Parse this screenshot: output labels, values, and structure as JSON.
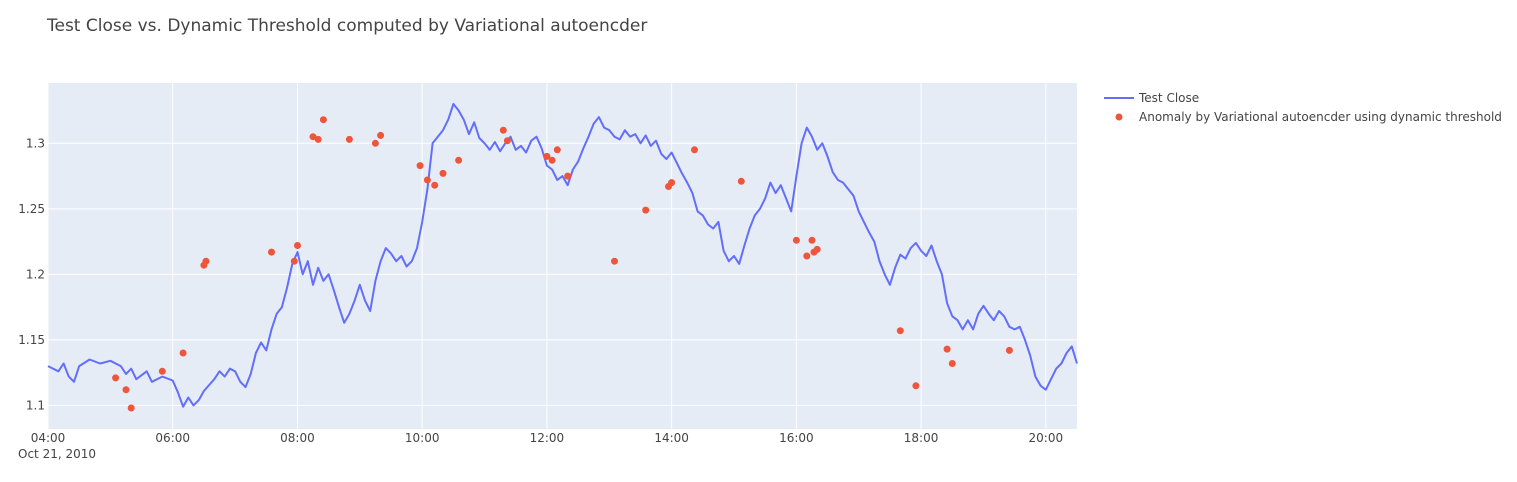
{
  "chart_data": {
    "type": "line",
    "title": "Test Close vs. Dynamic Threshold computed by Variational autoencder",
    "xlabel": "",
    "ylabel": "",
    "x_axis": {
      "start": "04:00",
      "end": "20:30",
      "ticks": [
        "04:00",
        "06:00",
        "08:00",
        "10:00",
        "12:00",
        "14:00",
        "16:00",
        "18:00",
        "20:00"
      ],
      "date_label": "Oct 21, 2010"
    },
    "y_axis": {
      "range": [
        1.082,
        1.346
      ],
      "ticks": [
        1.1,
        1.15,
        1.2,
        1.25,
        1.3
      ],
      "tick_labels": [
        "1.1",
        "1.15",
        "1.2",
        "1.25",
        "1.3"
      ]
    },
    "grid": true,
    "legend_position": "top-right",
    "series": [
      {
        "name": "Test Close",
        "type": "line",
        "color": "#636efa",
        "points": [
          [
            "04:00",
            1.13
          ],
          [
            "04:10",
            1.126
          ],
          [
            "04:15",
            1.132
          ],
          [
            "04:20",
            1.122
          ],
          [
            "04:25",
            1.118
          ],
          [
            "04:30",
            1.13
          ],
          [
            "04:40",
            1.135
          ],
          [
            "04:50",
            1.132
          ],
          [
            "05:00",
            1.134
          ],
          [
            "05:10",
            1.13
          ],
          [
            "05:15",
            1.124
          ],
          [
            "05:20",
            1.128
          ],
          [
            "05:25",
            1.12
          ],
          [
            "05:35",
            1.126
          ],
          [
            "05:40",
            1.118
          ],
          [
            "05:50",
            1.122
          ],
          [
            "06:00",
            1.119
          ],
          [
            "06:05",
            1.11
          ],
          [
            "06:10",
            1.099
          ],
          [
            "06:15",
            1.106
          ],
          [
            "06:20",
            1.1
          ],
          [
            "06:25",
            1.104
          ],
          [
            "06:30",
            1.111
          ],
          [
            "06:40",
            1.12
          ],
          [
            "06:45",
            1.126
          ],
          [
            "06:50",
            1.122
          ],
          [
            "06:55",
            1.128
          ],
          [
            "07:00",
            1.126
          ],
          [
            "07:05",
            1.118
          ],
          [
            "07:10",
            1.114
          ],
          [
            "07:15",
            1.124
          ],
          [
            "07:20",
            1.14
          ],
          [
            "07:25",
            1.148
          ],
          [
            "07:30",
            1.142
          ],
          [
            "07:35",
            1.158
          ],
          [
            "07:40",
            1.17
          ],
          [
            "07:45",
            1.175
          ],
          [
            "07:50",
            1.19
          ],
          [
            "07:55",
            1.208
          ],
          [
            "08:00",
            1.217
          ],
          [
            "08:05",
            1.2
          ],
          [
            "08:10",
            1.21
          ],
          [
            "08:15",
            1.192
          ],
          [
            "08:20",
            1.205
          ],
          [
            "08:25",
            1.195
          ],
          [
            "08:30",
            1.2
          ],
          [
            "08:35",
            1.188
          ],
          [
            "08:40",
            1.175
          ],
          [
            "08:45",
            1.163
          ],
          [
            "08:50",
            1.17
          ],
          [
            "08:55",
            1.18
          ],
          [
            "09:00",
            1.192
          ],
          [
            "09:05",
            1.18
          ],
          [
            "09:10",
            1.172
          ],
          [
            "09:15",
            1.195
          ],
          [
            "09:20",
            1.21
          ],
          [
            "09:25",
            1.22
          ],
          [
            "09:30",
            1.216
          ],
          [
            "09:35",
            1.21
          ],
          [
            "09:40",
            1.214
          ],
          [
            "09:45",
            1.206
          ],
          [
            "09:50",
            1.21
          ],
          [
            "09:55",
            1.22
          ],
          [
            "10:00",
            1.24
          ],
          [
            "10:05",
            1.265
          ],
          [
            "10:10",
            1.3
          ],
          [
            "10:15",
            1.305
          ],
          [
            "10:20",
            1.31
          ],
          [
            "10:25",
            1.318
          ],
          [
            "10:30",
            1.33
          ],
          [
            "10:35",
            1.325
          ],
          [
            "10:40",
            1.318
          ],
          [
            "10:45",
            1.307
          ],
          [
            "10:50",
            1.316
          ],
          [
            "10:55",
            1.304
          ],
          [
            "11:00",
            1.3
          ],
          [
            "11:05",
            1.295
          ],
          [
            "11:10",
            1.301
          ],
          [
            "11:15",
            1.294
          ],
          [
            "11:20",
            1.3
          ],
          [
            "11:25",
            1.305
          ],
          [
            "11:30",
            1.295
          ],
          [
            "11:35",
            1.298
          ],
          [
            "11:40",
            1.293
          ],
          [
            "11:45",
            1.302
          ],
          [
            "11:50",
            1.305
          ],
          [
            "11:55",
            1.296
          ],
          [
            "12:00",
            1.283
          ],
          [
            "12:05",
            1.28
          ],
          [
            "12:10",
            1.272
          ],
          [
            "12:15",
            1.275
          ],
          [
            "12:20",
            1.268
          ],
          [
            "12:25",
            1.28
          ],
          [
            "12:30",
            1.286
          ],
          [
            "12:35",
            1.296
          ],
          [
            "12:40",
            1.305
          ],
          [
            "12:45",
            1.315
          ],
          [
            "12:50",
            1.32
          ],
          [
            "12:55",
            1.312
          ],
          [
            "13:00",
            1.31
          ],
          [
            "13:05",
            1.305
          ],
          [
            "13:10",
            1.303
          ],
          [
            "13:15",
            1.31
          ],
          [
            "13:20",
            1.305
          ],
          [
            "13:25",
            1.307
          ],
          [
            "13:30",
            1.3
          ],
          [
            "13:35",
            1.306
          ],
          [
            "13:40",
            1.298
          ],
          [
            "13:45",
            1.302
          ],
          [
            "13:50",
            1.292
          ],
          [
            "13:55",
            1.288
          ],
          [
            "14:00",
            1.293
          ],
          [
            "14:05",
            1.285
          ],
          [
            "14:10",
            1.277
          ],
          [
            "14:15",
            1.27
          ],
          [
            "14:20",
            1.262
          ],
          [
            "14:25",
            1.248
          ],
          [
            "14:30",
            1.245
          ],
          [
            "14:35",
            1.238
          ],
          [
            "14:40",
            1.235
          ],
          [
            "14:45",
            1.24
          ],
          [
            "14:50",
            1.218
          ],
          [
            "14:55",
            1.21
          ],
          [
            "15:00",
            1.214
          ],
          [
            "15:05",
            1.208
          ],
          [
            "15:10",
            1.222
          ],
          [
            "15:15",
            1.235
          ],
          [
            "15:20",
            1.245
          ],
          [
            "15:25",
            1.25
          ],
          [
            "15:30",
            1.258
          ],
          [
            "15:35",
            1.27
          ],
          [
            "15:40",
            1.262
          ],
          [
            "15:45",
            1.268
          ],
          [
            "15:50",
            1.258
          ],
          [
            "15:55",
            1.248
          ],
          [
            "16:00",
            1.275
          ],
          [
            "16:05",
            1.3
          ],
          [
            "16:10",
            1.312
          ],
          [
            "16:15",
            1.305
          ],
          [
            "16:20",
            1.295
          ],
          [
            "16:25",
            1.3
          ],
          [
            "16:30",
            1.29
          ],
          [
            "16:35",
            1.278
          ],
          [
            "16:40",
            1.272
          ],
          [
            "16:45",
            1.27
          ],
          [
            "16:50",
            1.265
          ],
          [
            "16:55",
            1.26
          ],
          [
            "17:00",
            1.248
          ],
          [
            "17:05",
            1.24
          ],
          [
            "17:10",
            1.232
          ],
          [
            "17:15",
            1.225
          ],
          [
            "17:20",
            1.21
          ],
          [
            "17:25",
            1.2
          ],
          [
            "17:30",
            1.192
          ],
          [
            "17:35",
            1.205
          ],
          [
            "17:40",
            1.215
          ],
          [
            "17:45",
            1.212
          ],
          [
            "17:50",
            1.22
          ],
          [
            "17:55",
            1.224
          ],
          [
            "18:00",
            1.218
          ],
          [
            "18:05",
            1.214
          ],
          [
            "18:10",
            1.222
          ],
          [
            "18:15",
            1.21
          ],
          [
            "18:20",
            1.2
          ],
          [
            "18:25",
            1.178
          ],
          [
            "18:30",
            1.168
          ],
          [
            "18:35",
            1.165
          ],
          [
            "18:40",
            1.158
          ],
          [
            "18:45",
            1.165
          ],
          [
            "18:50",
            1.158
          ],
          [
            "18:55",
            1.17
          ],
          [
            "19:00",
            1.176
          ],
          [
            "19:05",
            1.17
          ],
          [
            "19:10",
            1.165
          ],
          [
            "19:15",
            1.172
          ],
          [
            "19:20",
            1.168
          ],
          [
            "19:25",
            1.16
          ],
          [
            "19:30",
            1.158
          ],
          [
            "19:35",
            1.16
          ],
          [
            "19:40",
            1.15
          ],
          [
            "19:45",
            1.138
          ],
          [
            "19:50",
            1.122
          ],
          [
            "19:55",
            1.115
          ],
          [
            "20:00",
            1.112
          ],
          [
            "20:05",
            1.12
          ],
          [
            "20:10",
            1.128
          ],
          [
            "20:15",
            1.132
          ],
          [
            "20:20",
            1.14
          ],
          [
            "20:25",
            1.145
          ],
          [
            "20:30",
            1.132
          ]
        ]
      },
      {
        "name": "Anomaly by Variational autoencder using dynamic threshold",
        "type": "scatter",
        "color": "#ef553b",
        "points": [
          [
            "05:05",
            1.121
          ],
          [
            "05:15",
            1.112
          ],
          [
            "05:20",
            1.098
          ],
          [
            "05:50",
            1.126
          ],
          [
            "06:10",
            1.14
          ],
          [
            "06:30",
            1.207
          ],
          [
            "06:32",
            1.21
          ],
          [
            "07:35",
            1.217
          ],
          [
            "07:57",
            1.21
          ],
          [
            "08:00",
            1.222
          ],
          [
            "08:15",
            1.305
          ],
          [
            "08:20",
            1.303
          ],
          [
            "08:25",
            1.318
          ],
          [
            "08:50",
            1.303
          ],
          [
            "09:15",
            1.3
          ],
          [
            "09:20",
            1.306
          ],
          [
            "09:58",
            1.283
          ],
          [
            "10:05",
            1.272
          ],
          [
            "10:12",
            1.268
          ],
          [
            "10:20",
            1.277
          ],
          [
            "10:35",
            1.287
          ],
          [
            "11:18",
            1.31
          ],
          [
            "11:22",
            1.302
          ],
          [
            "12:00",
            1.29
          ],
          [
            "12:05",
            1.287
          ],
          [
            "12:10",
            1.295
          ],
          [
            "12:20",
            1.275
          ],
          [
            "13:05",
            1.21
          ],
          [
            "13:35",
            1.249
          ],
          [
            "13:57",
            1.267
          ],
          [
            "14:00",
            1.27
          ],
          [
            "14:22",
            1.295
          ],
          [
            "15:07",
            1.271
          ],
          [
            "16:00",
            1.226
          ],
          [
            "16:10",
            1.214
          ],
          [
            "16:15",
            1.226
          ],
          [
            "16:17",
            1.217
          ],
          [
            "16:20",
            1.219
          ],
          [
            "17:40",
            1.157
          ],
          [
            "17:55",
            1.115
          ],
          [
            "18:25",
            1.143
          ],
          [
            "18:30",
            1.132
          ],
          [
            "19:25",
            1.142
          ]
        ]
      }
    ]
  }
}
